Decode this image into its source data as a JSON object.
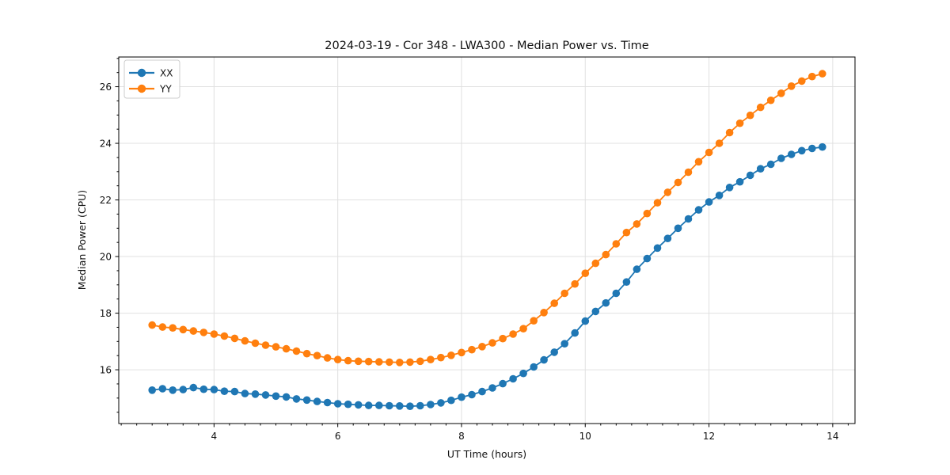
{
  "figure": {
    "title": "2024-03-19 - Cor 348 - LWA300 - Median Power vs. Time",
    "xlabel": "UT Time (hours)",
    "ylabel": "Median Power (CPU)"
  },
  "legend": {
    "entries": [
      {
        "label": "XX",
        "color": "#1f77b4"
      },
      {
        "label": "YY",
        "color": "#ff7f0e"
      }
    ]
  },
  "colors": {
    "grid": "#e0e0e0",
    "spine": "#000000",
    "background": "#ffffff"
  },
  "chart_data": {
    "type": "line",
    "title": "2024-03-19 - Cor 348 - LWA300 - Median Power vs. Time",
    "xlabel": "UT Time (hours)",
    "ylabel": "Median Power (CPU)",
    "grid": "major",
    "legend_position": "upper-left",
    "xlim": [
      2.46,
      14.36
    ],
    "ylim": [
      14.1,
      27.05
    ],
    "x_ticks": [
      4,
      6,
      8,
      10,
      12,
      14
    ],
    "y_ticks": [
      16,
      18,
      20,
      22,
      24,
      26
    ],
    "x_minor_step": 0.25,
    "y_minor_step": 0.5,
    "marker": "circle",
    "x": [
      3.0,
      3.167,
      3.333,
      3.5,
      3.667,
      3.833,
      4.0,
      4.167,
      4.333,
      4.5,
      4.667,
      4.833,
      5.0,
      5.167,
      5.333,
      5.5,
      5.667,
      5.833,
      6.0,
      6.167,
      6.333,
      6.5,
      6.667,
      6.833,
      7.0,
      7.167,
      7.333,
      7.5,
      7.667,
      7.833,
      8.0,
      8.167,
      8.333,
      8.5,
      8.667,
      8.833,
      9.0,
      9.167,
      9.333,
      9.5,
      9.667,
      9.833,
      10.0,
      10.167,
      10.333,
      10.5,
      10.667,
      10.833,
      11.0,
      11.167,
      11.333,
      11.5,
      11.667,
      11.833,
      12.0,
      12.167,
      12.333,
      12.5,
      12.667,
      12.833,
      13.0,
      13.167,
      13.333,
      13.5,
      13.667,
      13.833
    ],
    "series": [
      {
        "name": "XX",
        "color": "#1f77b4",
        "values": [
          15.28,
          15.33,
          15.28,
          15.3,
          15.37,
          15.31,
          15.3,
          15.24,
          15.23,
          15.16,
          15.14,
          15.11,
          15.07,
          15.04,
          14.97,
          14.93,
          14.88,
          14.84,
          14.8,
          14.78,
          14.76,
          14.74,
          14.74,
          14.73,
          14.72,
          14.71,
          14.73,
          14.77,
          14.83,
          14.92,
          15.03,
          15.12,
          15.23,
          15.36,
          15.51,
          15.68,
          15.87,
          16.1,
          16.35,
          16.62,
          16.92,
          17.3,
          17.72,
          18.06,
          18.36,
          18.7,
          19.1,
          19.55,
          19.93,
          20.3,
          20.64,
          21.0,
          21.33,
          21.65,
          21.93,
          22.16,
          22.44,
          22.64,
          22.87,
          23.1,
          23.26,
          23.47,
          23.61,
          23.74,
          23.82,
          23.87
        ]
      },
      {
        "name": "YY",
        "color": "#ff7f0e",
        "values": [
          17.58,
          17.51,
          17.48,
          17.42,
          17.37,
          17.32,
          17.26,
          17.19,
          17.11,
          17.02,
          16.94,
          16.87,
          16.81,
          16.74,
          16.66,
          16.57,
          16.5,
          16.42,
          16.36,
          16.32,
          16.3,
          16.29,
          16.28,
          16.27,
          16.26,
          16.27,
          16.3,
          16.36,
          16.43,
          16.51,
          16.61,
          16.71,
          16.82,
          16.95,
          17.1,
          17.26,
          17.45,
          17.73,
          18.02,
          18.35,
          18.7,
          19.03,
          19.41,
          19.76,
          20.07,
          20.45,
          20.85,
          21.15,
          21.52,
          21.9,
          22.27,
          22.62,
          22.98,
          23.35,
          23.68,
          24.0,
          24.38,
          24.71,
          24.99,
          25.27,
          25.52,
          25.77,
          26.02,
          26.2,
          26.36,
          26.46
        ]
      }
    ]
  }
}
